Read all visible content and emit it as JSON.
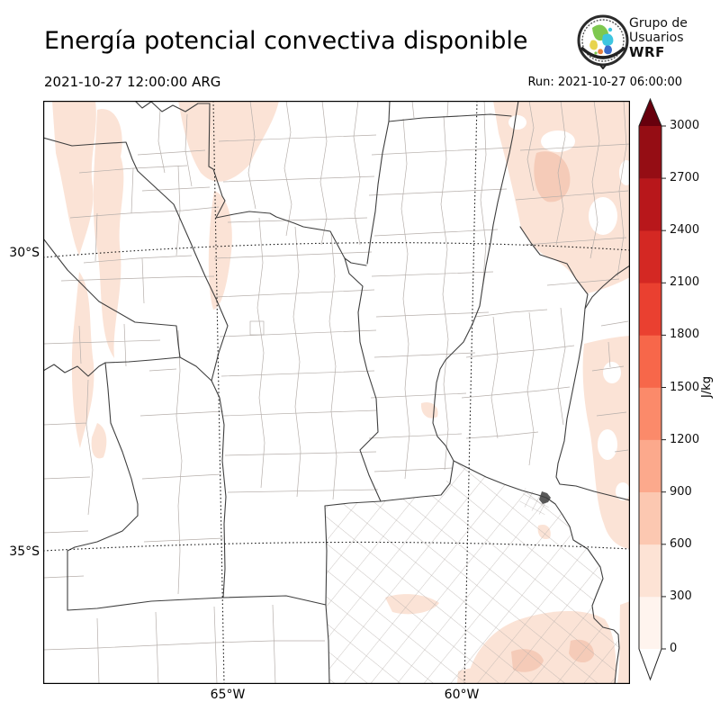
{
  "header": {
    "title": "Energía potencial convectiva disponible",
    "valid_time": "2021-10-27 12:00:00 ARG",
    "run": "Run: 2021-10-27 06:00:00",
    "logo": {
      "line1": "Grupo de",
      "line2": "Usuarios",
      "line3": "WRF"
    }
  },
  "map": {
    "lat_ticks": [
      "30°S",
      "35°S"
    ],
    "lon_ticks": [
      "65°W",
      "60°W"
    ],
    "cape_shade_light": "#fbe3d6",
    "cape_shade_mid": "#f5cbb8"
  },
  "colorbar": {
    "unit": "J/kg",
    "levels": [
      0,
      300,
      600,
      900,
      1200,
      1500,
      1800,
      2100,
      2400,
      2700,
      3000
    ],
    "tick_labels": [
      "0",
      "300",
      "600",
      "900",
      "1200",
      "1500",
      "1800",
      "2100",
      "2400",
      "2700",
      "3000"
    ],
    "segment_colors_bottom_to_top": [
      "#fff4ee",
      "#fde3d5",
      "#fcc8b1",
      "#fca98c",
      "#fb8a6a",
      "#f7674a",
      "#ea4030",
      "#d42823",
      "#b8171b",
      "#950d14"
    ],
    "under_color": "#ffffff",
    "over_color": "#67000d"
  }
}
